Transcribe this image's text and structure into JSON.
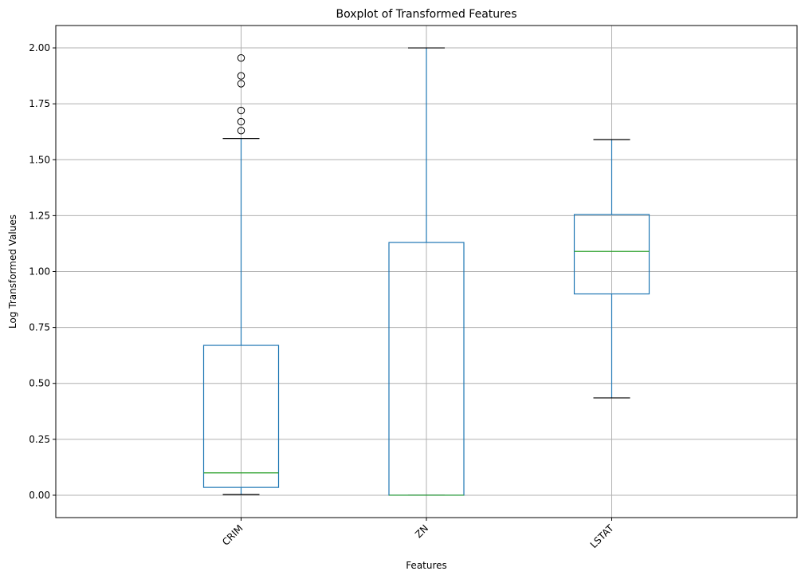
{
  "chart_data": {
    "type": "boxplot",
    "title": "Boxplot of Transformed Features",
    "xlabel": "Features",
    "ylabel": "Log Transformed Values",
    "ylim": [
      -0.1,
      2.1
    ],
    "yticks": [
      "0.00",
      "0.25",
      "0.50",
      "0.75",
      "1.00",
      "1.25",
      "1.50",
      "1.75",
      "2.00"
    ],
    "ytick_values": [
      0,
      0.25,
      0.5,
      0.75,
      1.0,
      1.25,
      1.5,
      1.75,
      2.0
    ],
    "grid": true,
    "categories": [
      "CRIM",
      "ZN",
      "LSTAT"
    ],
    "boxes": [
      {
        "label": "CRIM",
        "whisker_low": 0.003,
        "q1": 0.035,
        "median": 0.1,
        "q3": 0.67,
        "whisker_high": 1.595,
        "outliers": [
          1.63,
          1.67,
          1.72,
          1.84,
          1.875,
          1.955
        ]
      },
      {
        "label": "ZN",
        "whisker_low": 0.0,
        "q1": 0.0,
        "median": 0.0,
        "q3": 1.13,
        "whisker_high": 2.0,
        "outliers": []
      },
      {
        "label": "LSTAT",
        "whisker_low": 0.435,
        "q1": 0.9,
        "median": 1.09,
        "q3": 1.255,
        "whisker_high": 1.59,
        "outliers": []
      }
    ],
    "colors": {
      "box": "#1f77b4",
      "median": "#2ca02c",
      "cap": "#000000",
      "grid": "#b0b0b0"
    }
  }
}
